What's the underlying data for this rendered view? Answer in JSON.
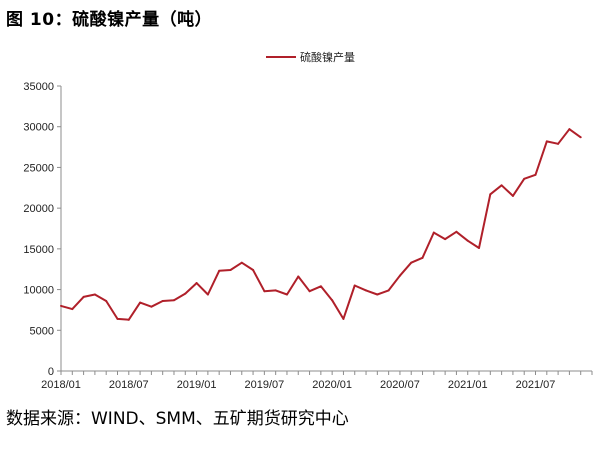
{
  "title": "图 10：硫酸镍产量（吨）",
  "source": "数据来源：WIND、SMM、五矿期货研究中心",
  "colors": {
    "line": "#b0202a",
    "axis": "#8c8c8c"
  },
  "chart_data": {
    "type": "line",
    "title": "图 10：硫酸镍产量（吨）",
    "xlabel": "",
    "ylabel": "",
    "ylim": [
      0,
      35000
    ],
    "y_ticks": [
      "0",
      "5000",
      "10000",
      "15000",
      "20000",
      "25000",
      "30000",
      "35000"
    ],
    "x_ticks": [
      "2018/01",
      "2018/07",
      "2019/01",
      "2019/07",
      "2020/01",
      "2020/07",
      "2021/01",
      "2021/07"
    ],
    "legend": "top-center",
    "grid": false,
    "series": [
      {
        "name": "硫酸镍产量",
        "x": [
          "2018/01",
          "2018/02",
          "2018/03",
          "2018/04",
          "2018/05",
          "2018/06",
          "2018/07",
          "2018/08",
          "2018/09",
          "2018/10",
          "2018/11",
          "2018/12",
          "2019/01",
          "2019/02",
          "2019/03",
          "2019/04",
          "2019/05",
          "2019/06",
          "2019/07",
          "2019/08",
          "2019/09",
          "2019/10",
          "2019/11",
          "2019/12",
          "2020/01",
          "2020/02",
          "2020/03",
          "2020/04",
          "2020/05",
          "2020/06",
          "2020/07",
          "2020/08",
          "2020/09",
          "2020/10",
          "2020/11",
          "2020/12",
          "2021/01",
          "2021/02",
          "2021/03",
          "2021/04",
          "2021/05",
          "2021/06",
          "2021/07",
          "2021/08",
          "2021/09",
          "2021/10",
          "2021/11"
        ],
        "values": [
          8000,
          7600,
          9100,
          9400,
          8600,
          6400,
          6300,
          8400,
          7900,
          8600,
          8700,
          9500,
          10800,
          9400,
          12300,
          12400,
          13300,
          12400,
          9800,
          9900,
          9400,
          11600,
          9800,
          10400,
          8700,
          6400,
          10500,
          9900,
          9400,
          9900,
          11700,
          13300,
          13900,
          17000,
          16200,
          17100,
          16000,
          15100,
          21700,
          22800,
          21500,
          23600,
          24100,
          28200,
          27900,
          29700,
          28700
        ]
      }
    ]
  }
}
